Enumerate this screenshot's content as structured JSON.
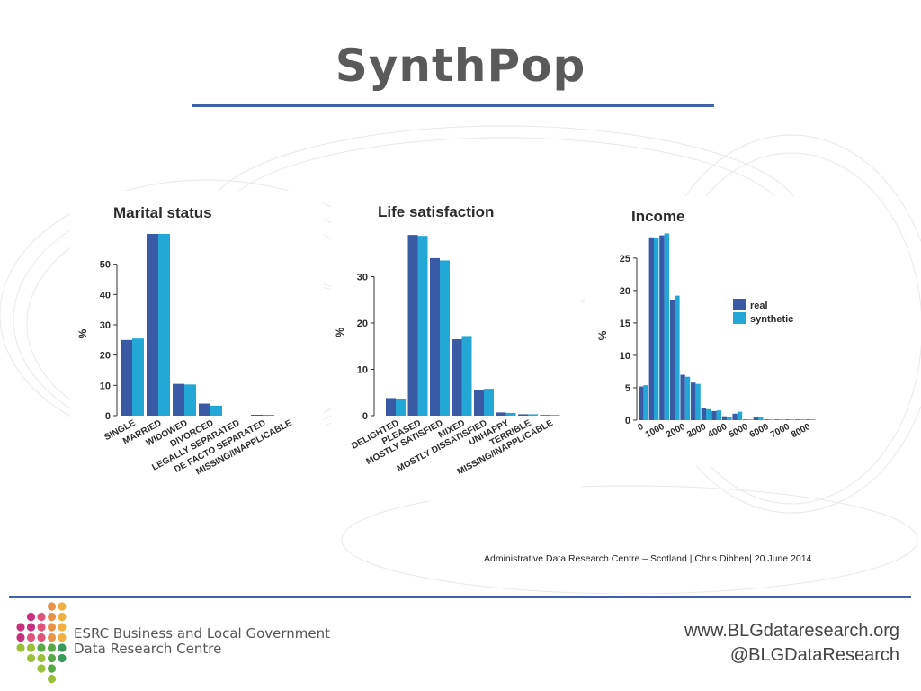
{
  "slide": {
    "title": "SynthPop",
    "footnote": "Administrative Data Research Centre – Scotland | Chris Dibben| 20 June 2014",
    "org_name_line1": "ESRC Business and Local Government",
    "org_name_line2": "Data Research Centre",
    "website": "www.BLGdataresearch.org",
    "twitter": "@BLGDataResearch"
  },
  "colors": {
    "real": "#3a5aa6",
    "synthetic": "#22a7d6",
    "rule": "#3f63a8",
    "title": "#5a5a5a",
    "logo_dots": [
      "#c8317f",
      "#e0537a",
      "#e8934a",
      "#f0b040",
      "#9bbf3a",
      "#58a848",
      "#3a9a5a"
    ]
  },
  "chart_data": [
    {
      "type": "bar",
      "title": "Marital status",
      "ylabel": "%",
      "ylim": [
        0,
        60
      ],
      "yticks": [
        0,
        10,
        20,
        30,
        40,
        50
      ],
      "categories": [
        "SINGLE",
        "MARRIED",
        "WIDOWED",
        "DIVORCED",
        "LEGALLY SEPARATED",
        "DE FACTO SEPARATED",
        "MISSING/INAPPLICABLE"
      ],
      "series": [
        {
          "name": "real",
          "values": [
            25,
            60,
            10.5,
            4,
            0,
            0.3,
            0
          ]
        },
        {
          "name": "synthetic",
          "values": [
            25.5,
            60,
            10.3,
            3.3,
            0,
            0.3,
            0
          ]
        }
      ],
      "grid": false
    },
    {
      "type": "bar",
      "title": "Life satisfaction",
      "ylabel": "%",
      "ylim": [
        0,
        40
      ],
      "yticks": [
        0,
        10,
        20,
        30
      ],
      "categories": [
        "DELIGHTED",
        "PLEASED",
        "MOSTLY SATISFIED",
        "MIXED",
        "MOSTLY DISSATISFIED",
        "UNHAPPY",
        "TERRIBLE",
        "MISSING/INAPPLICABLE"
      ],
      "series": [
        {
          "name": "real",
          "values": [
            3.8,
            39,
            34,
            16.5,
            5.5,
            0.7,
            0.3,
            0.1
          ]
        },
        {
          "name": "synthetic",
          "values": [
            3.6,
            38.8,
            33.5,
            17.2,
            5.8,
            0.6,
            0.3,
            0.1
          ]
        }
      ],
      "grid": false
    },
    {
      "type": "bar",
      "title": "Income",
      "ylabel": "%",
      "ylim": [
        0,
        29
      ],
      "yticks": [
        0,
        5,
        10,
        15,
        20,
        25
      ],
      "xticks": [
        "0",
        "1000",
        "2000",
        "3000",
        "4000",
        "5000",
        "6000",
        "7000",
        "8000"
      ],
      "categories": [
        "0",
        "500",
        "1000",
        "1500",
        "2000",
        "2500",
        "3000",
        "3500",
        "4000",
        "4500",
        "5000",
        "5500",
        "6000",
        "6500",
        "7000",
        "7500",
        "8000"
      ],
      "series": [
        {
          "name": "real",
          "values": [
            5.2,
            28.2,
            28.5,
            18.6,
            7.0,
            5.8,
            1.8,
            1.4,
            0.6,
            1.0,
            0.1,
            0.4,
            0.1,
            0.1,
            0.05,
            0.05,
            0.05
          ]
        },
        {
          "name": "synthetic",
          "values": [
            5.4,
            28.1,
            28.8,
            19.2,
            6.7,
            5.6,
            1.7,
            1.5,
            0.5,
            1.3,
            0.1,
            0.4,
            0.1,
            0.1,
            0.05,
            0.05,
            0.05
          ]
        }
      ],
      "legend": {
        "position": "right",
        "entries": [
          "real",
          "synthetic"
        ]
      },
      "grid": false
    }
  ]
}
